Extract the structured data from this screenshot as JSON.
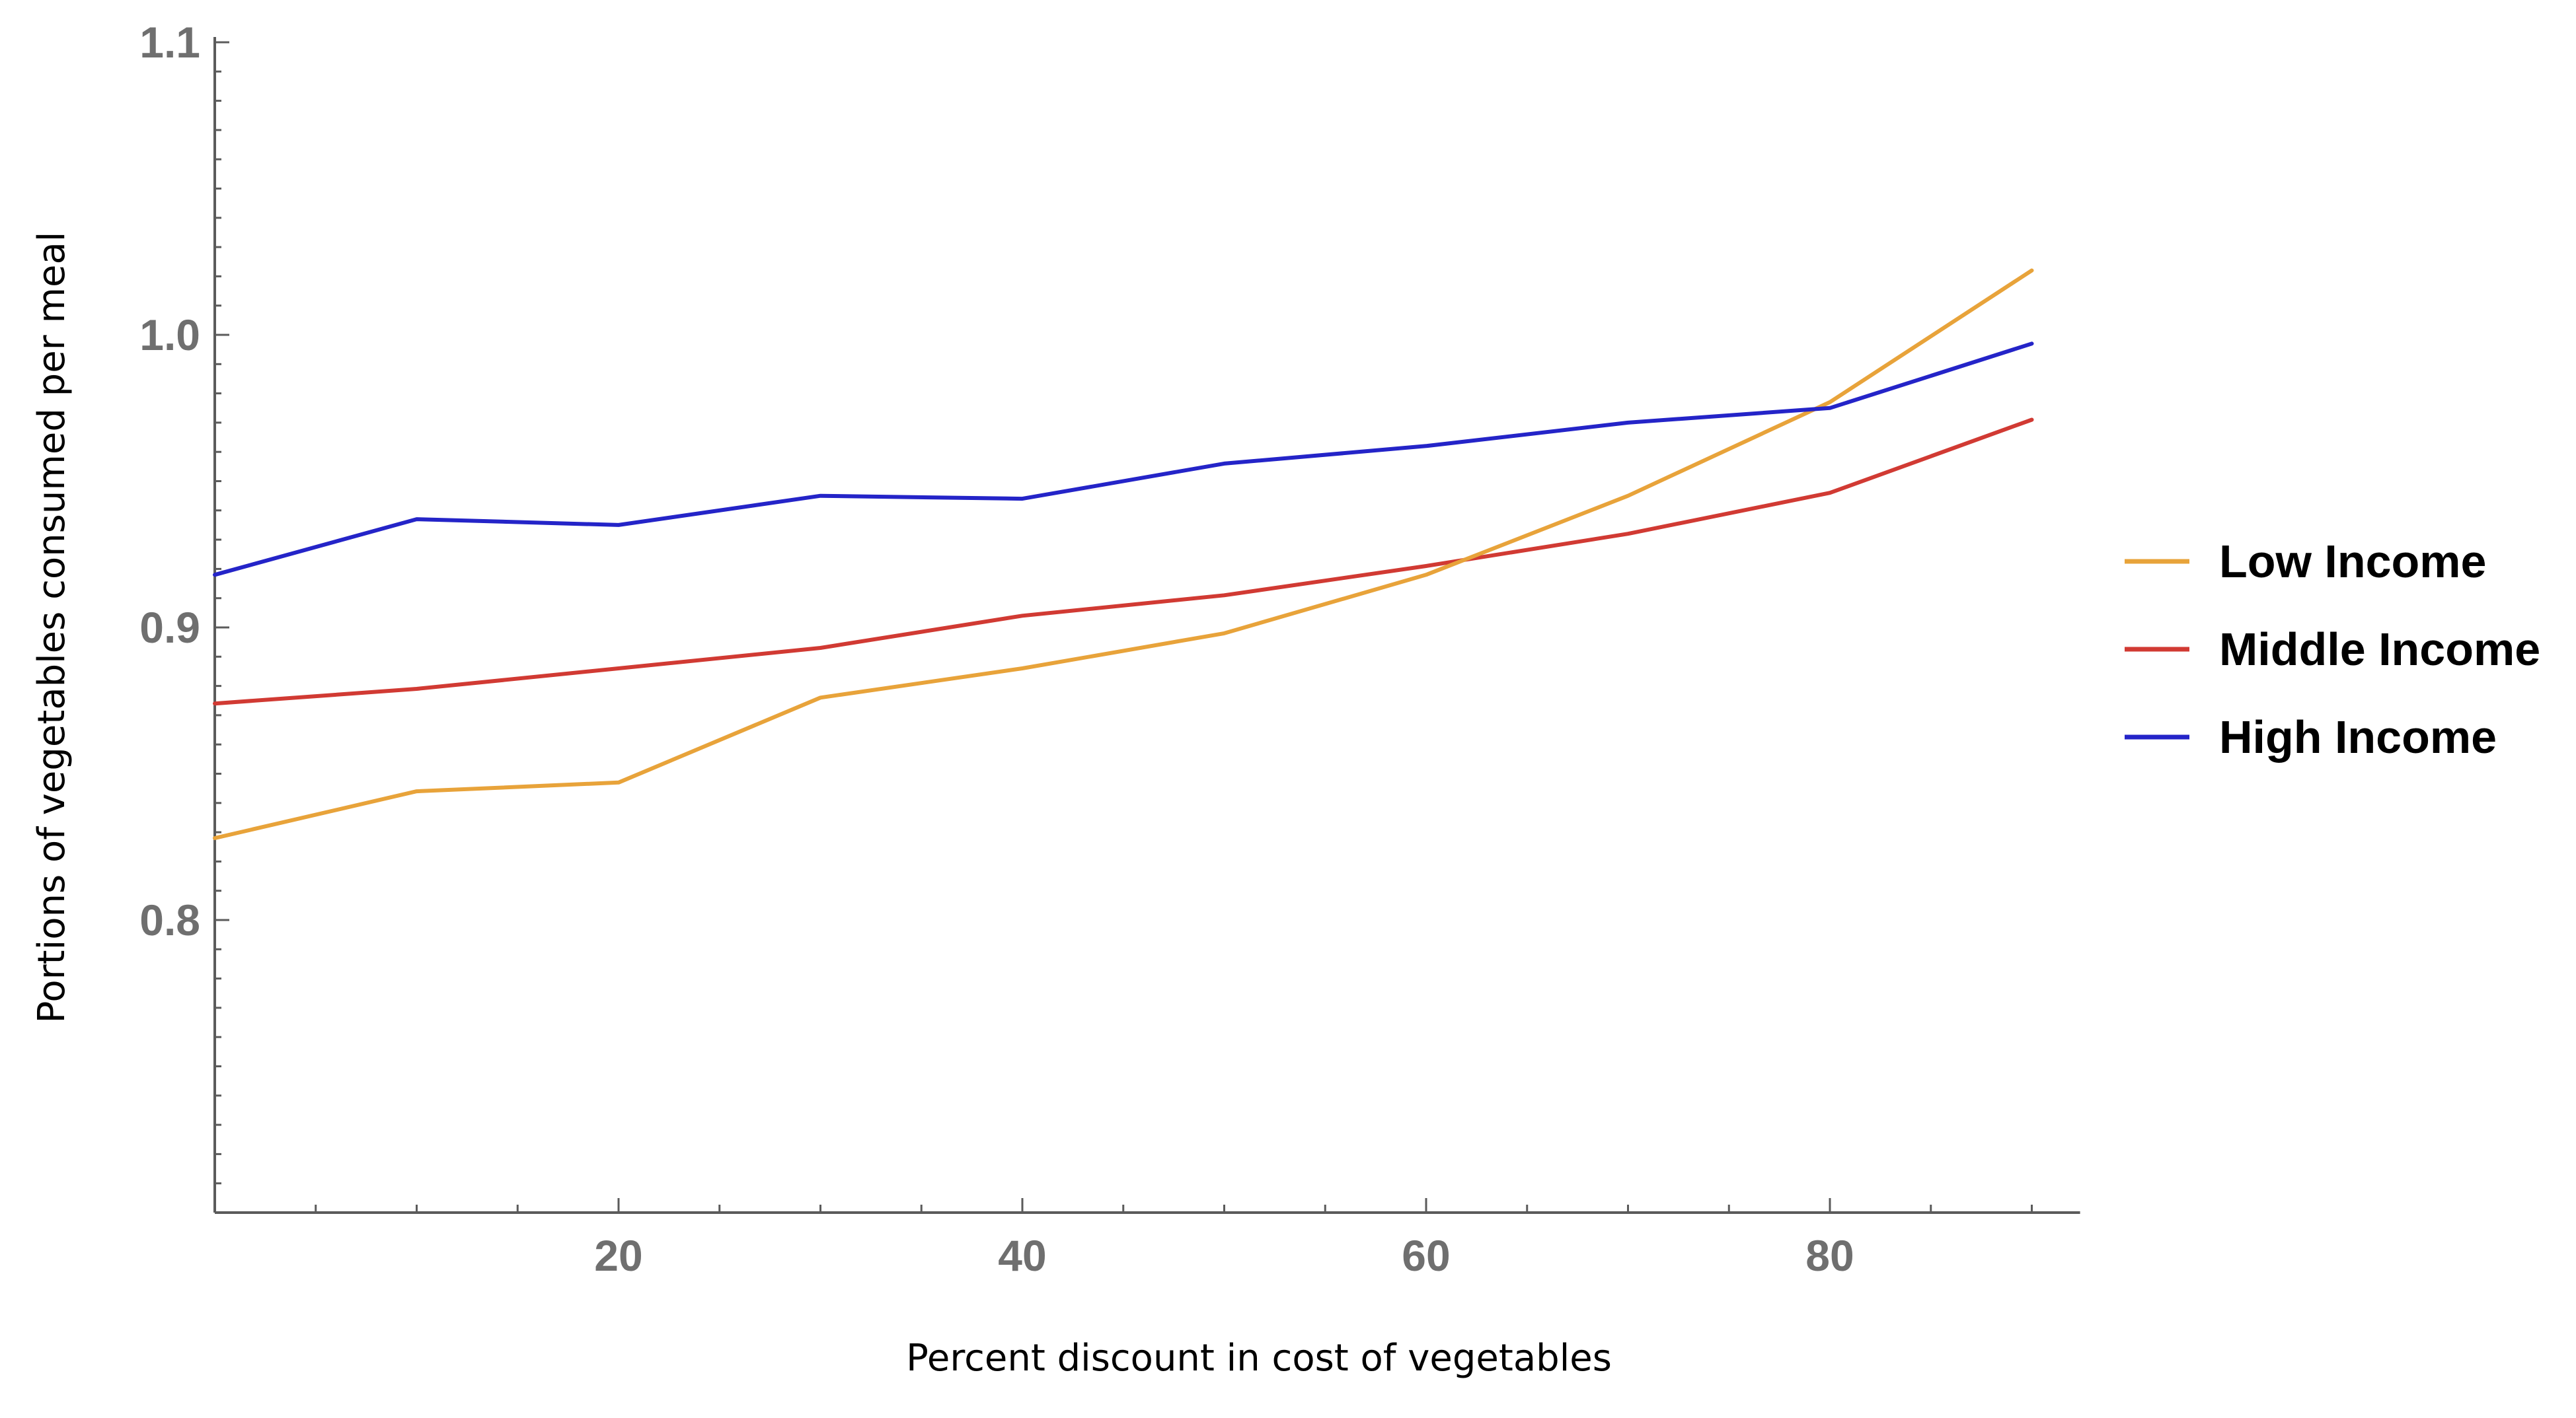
{
  "chart_data": {
    "type": "line",
    "title": "",
    "xlabel": "Percent discount in cost of vegetables",
    "ylabel": "Portions of vegetables consumed per meal",
    "xlim": [
      0,
      92
    ],
    "ylim": [
      0.7,
      1.1
    ],
    "x_ticks": [
      20,
      40,
      60,
      80
    ],
    "x_tick_labels": [
      "20",
      "40",
      "60",
      "80"
    ],
    "y_ticks": [
      0.8,
      0.9,
      1.0,
      1.1
    ],
    "y_tick_labels": [
      "0.8",
      "0.9",
      "1.0",
      "1.1"
    ],
    "x": [
      0,
      10,
      20,
      30,
      40,
      50,
      60,
      70,
      80,
      90
    ],
    "grid": false,
    "legend_position": "right",
    "series": [
      {
        "name": "Low Income",
        "color": "#E8A33A",
        "values": [
          0.828,
          0.844,
          0.847,
          0.876,
          0.886,
          0.898,
          0.918,
          0.945,
          0.977,
          1.022
        ]
      },
      {
        "name": "Middle Income",
        "color": "#D13A33",
        "values": [
          0.874,
          0.879,
          0.886,
          0.893,
          0.904,
          0.911,
          0.921,
          0.932,
          0.946,
          0.971
        ]
      },
      {
        "name": "High Income",
        "color": "#2424C8",
        "values": [
          0.918,
          0.937,
          0.935,
          0.945,
          0.944,
          0.956,
          0.962,
          0.97,
          0.975,
          0.997
        ]
      }
    ]
  }
}
